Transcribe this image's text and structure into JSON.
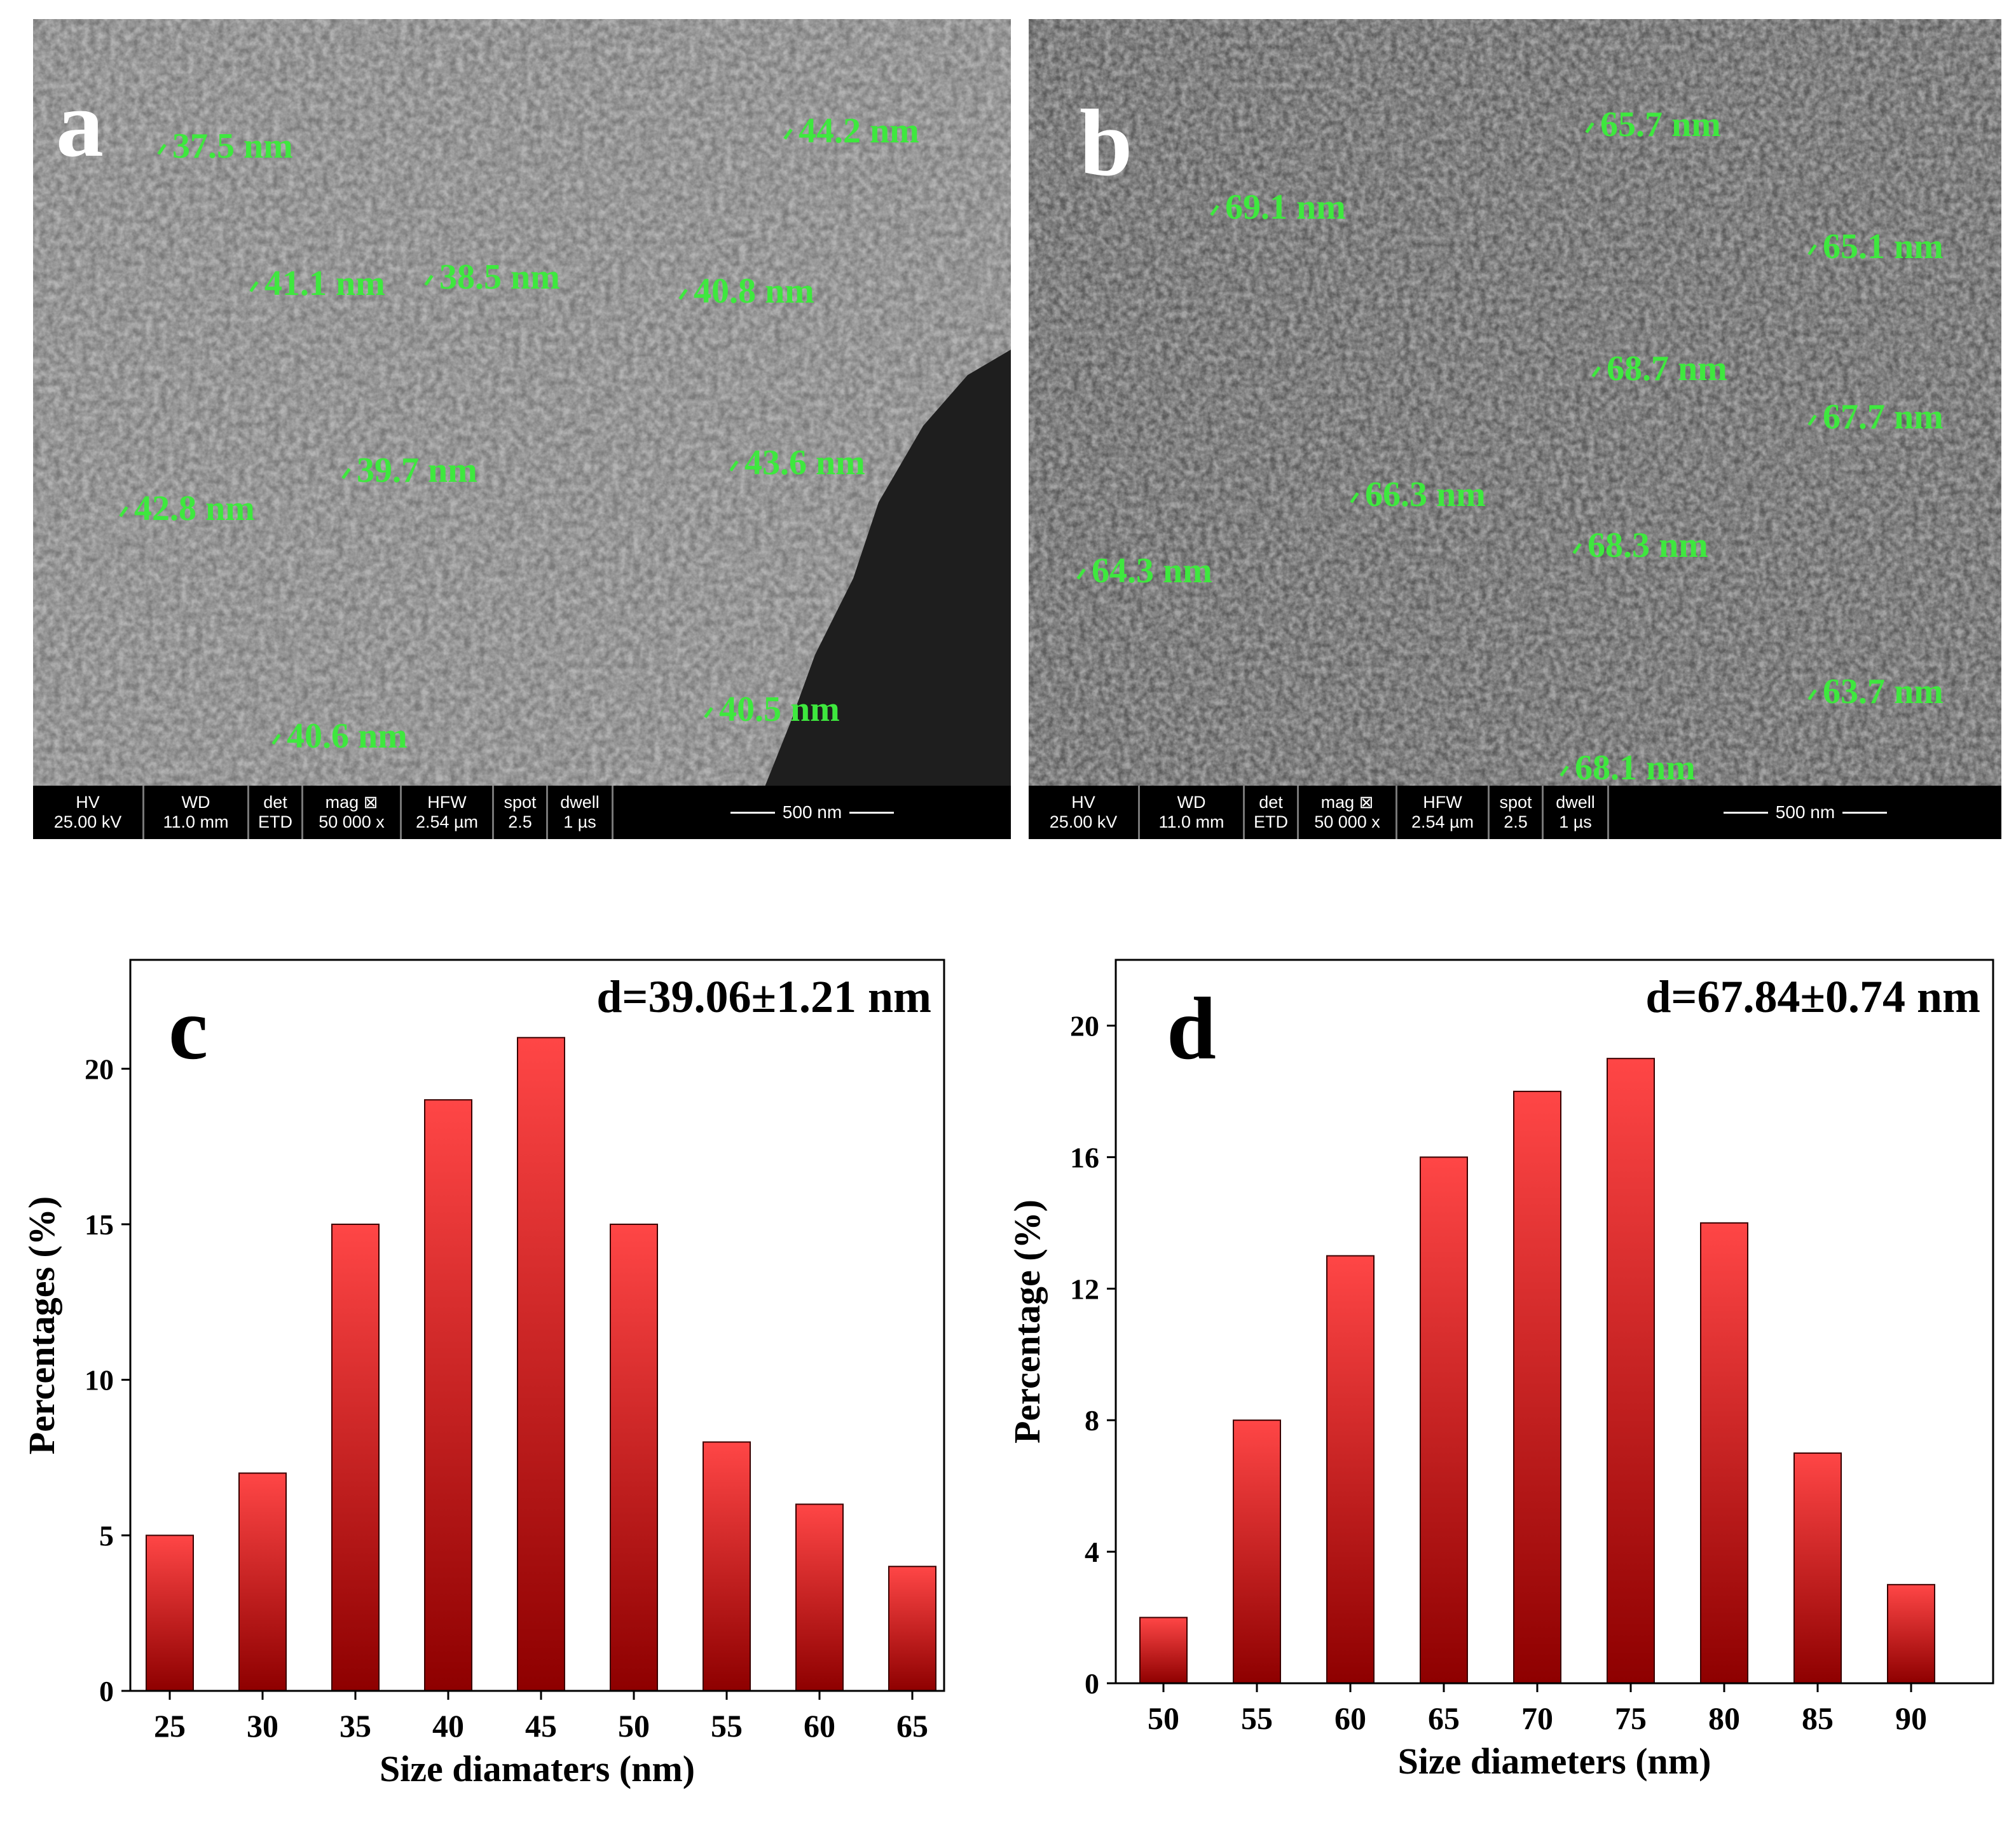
{
  "panels": {
    "a": {
      "letter": "a",
      "measurements": [
        "37.5 nm",
        "44.2 nm",
        "41.1 nm",
        "38.5 nm",
        "40.8 nm",
        "39.7 nm",
        "43.6 nm",
        "42.8 nm",
        "40.6 nm",
        "40.5 nm"
      ],
      "infobar": {
        "headers": [
          "HV",
          "WD",
          "det",
          "mag ⊠",
          "HFW",
          "spot",
          "dwell"
        ],
        "values": [
          "25.00 kV",
          "11.0 mm",
          "ETD",
          "50 000 x",
          "2.54 µm",
          "2.5",
          "1 µs"
        ],
        "scale": "500 nm"
      }
    },
    "b": {
      "letter": "b",
      "measurements": [
        "65.7 nm",
        "69.1 nm",
        "65.1 nm",
        "68.7 nm",
        "67.7 nm",
        "66.3 nm",
        "68.3 nm",
        "64.3 nm",
        "63.7 nm",
        "68.1 nm"
      ],
      "infobar": {
        "headers": [
          "HV",
          "WD",
          "det",
          "mag ⊠",
          "HFW",
          "spot",
          "dwell"
        ],
        "values": [
          "25.00 kV",
          "11.0 mm",
          "ETD",
          "50 000 x",
          "2.54 µm",
          "2.5",
          "1 µs"
        ],
        "scale": "500 nm"
      }
    }
  },
  "colors": {
    "bar_top": "#ff4646",
    "bar_bottom": "#8e0000",
    "measure_green": "#3ee83e"
  },
  "chart_data": [
    {
      "type": "bar",
      "panel_letter": "c",
      "annotation": "d=39.06±1.21 nm",
      "categories": [
        "25",
        "30",
        "35",
        "40",
        "45",
        "50",
        "55",
        "60",
        "65"
      ],
      "values": [
        5,
        7,
        15,
        19,
        21,
        15,
        8,
        6,
        4
      ],
      "xlabel": "Size diamaters (nm)",
      "ylabel": "Percentages (%)",
      "ylim": [
        0,
        23.5
      ],
      "yticks": [
        0,
        5,
        10,
        15,
        20
      ],
      "grid": false
    },
    {
      "type": "bar",
      "panel_letter": "d",
      "annotation": "d=67.84±0.74 nm",
      "categories": [
        "50",
        "55",
        "60",
        "65",
        "70",
        "75",
        "80",
        "85",
        "90"
      ],
      "values": [
        2,
        8,
        13,
        16,
        18,
        19,
        14,
        7,
        3
      ],
      "xlabel": "Size diameters (nm)",
      "ylabel": "Percentage (%)",
      "ylim": [
        0,
        22
      ],
      "yticks": [
        0,
        4,
        8,
        12,
        16,
        20
      ],
      "grid": false
    }
  ]
}
